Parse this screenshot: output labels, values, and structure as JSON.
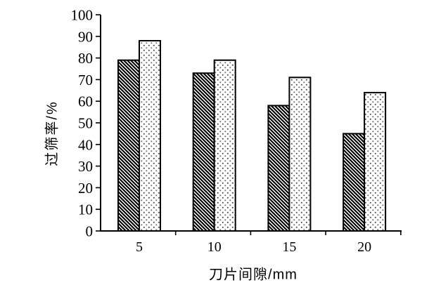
{
  "chart_data": {
    "type": "bar",
    "title": "",
    "xlabel": "刀片间隙/mm",
    "ylabel": "过筛率/%",
    "categories": [
      "5",
      "10",
      "15",
      "20"
    ],
    "series": [
      {
        "name": "hatched-series",
        "pattern": "diagonal-hatch",
        "values": [
          79,
          73,
          58,
          45
        ]
      },
      {
        "name": "dotted-series",
        "pattern": "dot-stipple",
        "values": [
          88,
          79,
          71,
          64
        ]
      }
    ],
    "ylim": [
      0,
      100
    ],
    "ytick_step": 10,
    "yticks": [
      0,
      10,
      20,
      30,
      40,
      50,
      60,
      70,
      80,
      90,
      100
    ],
    "grid": false,
    "legend": "none",
    "colors": {
      "ink": "#000000",
      "dot_ink": "#4a4a4a",
      "bar_background": "#ffffff",
      "page_background": "#ffffff"
    }
  }
}
